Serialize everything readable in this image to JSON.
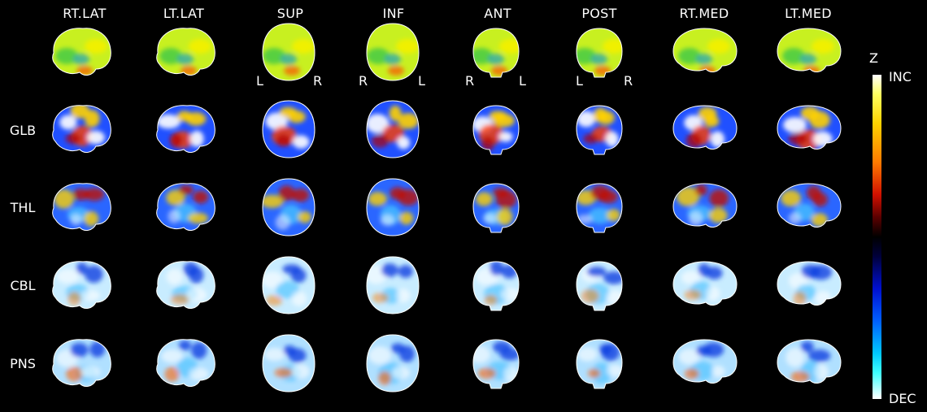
{
  "columns": [
    "RT.LAT",
    "LT.LAT",
    "SUP",
    "INF",
    "ANT",
    "POST",
    "RT.MED",
    "LT.MED"
  ],
  "rows": [
    "GLB",
    "THL",
    "CBL",
    "PNS"
  ],
  "orientation": {
    "sup_left": "L",
    "sup_right": "R",
    "inf_left": "R",
    "inf_right": "L",
    "ant_left": "R",
    "ant_right": "L",
    "post_left": "L",
    "post_right": "R"
  },
  "colorbar": {
    "title": "Z",
    "top_label": "INC",
    "bottom_label": "DEC"
  }
}
